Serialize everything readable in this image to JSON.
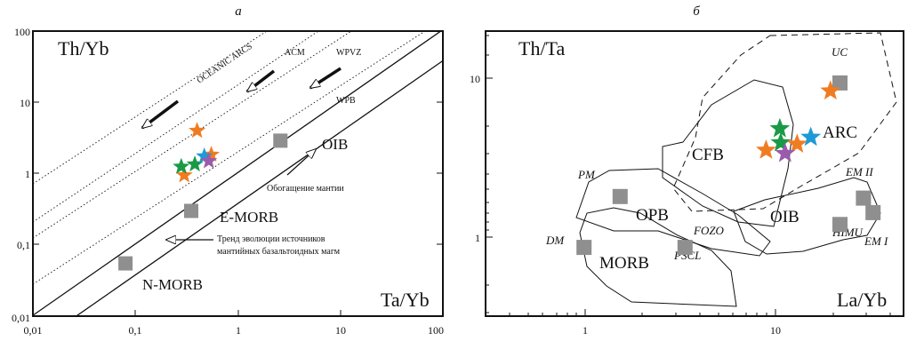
{
  "panels": {
    "a": {
      "letter": "а",
      "y_label": "Th/Yb",
      "x_label": "Ta/Yb",
      "x_ticks": [
        "0,01",
        "0,1",
        "1",
        "10",
        "100"
      ],
      "y_ticks": [
        "100",
        "10",
        "1",
        "0,1",
        "0,01"
      ],
      "zone_labels": [
        "OCEANIC ARCS",
        "ACM",
        "WPVZ",
        "WPB"
      ],
      "oib": "OIB",
      "e_morb": "E-MORB",
      "n_morb": "N-MORB",
      "enrichment": "Обогащение мантии",
      "trend_line1": "Тренд эволюции источников",
      "trend_line2": "мантийных базальтоидных магм"
    },
    "b": {
      "letter": "б",
      "y_label": "Th/Ta",
      "x_label": "La/Yb",
      "x_ticks": [
        "1",
        "10"
      ],
      "y_ticks": [
        "10",
        "1"
      ],
      "fields": [
        "ARC",
        "CFB",
        "OPB",
        "OIB",
        "MORB"
      ],
      "reservoirs": [
        "UC",
        "PM",
        "DM",
        "FOZO",
        "PSCL",
        "EM II",
        "EM I",
        "HIMU"
      ]
    }
  },
  "colors": {
    "orange": "#f07c22",
    "green": "#1a9a47",
    "blue": "#1d9ad6",
    "purple": "#9b5bab",
    "gray": "#8f8f8f"
  },
  "chart_data": [
    {
      "type": "scatter",
      "panel": "a",
      "xlabel": "Ta/Yb",
      "ylabel": "Th/Yb",
      "xscale": "log",
      "yscale": "log",
      "xlim": [
        0.01,
        100
      ],
      "ylim": [
        0.01,
        100
      ],
      "reference_points": [
        {
          "name": "N-MORB",
          "x": 0.08,
          "y": 0.055
        },
        {
          "name": "E-MORB",
          "x": 0.35,
          "y": 0.3
        },
        {
          "name": "OIB",
          "x": 2.6,
          "y": 2.9
        }
      ],
      "samples": [
        {
          "x": 0.4,
          "y": 4.0,
          "color": "orange"
        },
        {
          "x": 0.3,
          "y": 0.95,
          "color": "orange"
        },
        {
          "x": 0.55,
          "y": 1.85,
          "color": "orange"
        },
        {
          "x": 0.28,
          "y": 1.25,
          "color": "green"
        },
        {
          "x": 0.38,
          "y": 1.35,
          "color": "green"
        },
        {
          "x": 0.47,
          "y": 1.75,
          "color": "blue"
        },
        {
          "x": 0.52,
          "y": 1.5,
          "color": "purple"
        }
      ]
    },
    {
      "type": "scatter",
      "panel": "b",
      "xlabel": "La/Yb",
      "ylabel": "Th/Ta",
      "xscale": "log",
      "yscale": "log",
      "xlim": [
        0.3,
        40
      ],
      "ylim": [
        0.35,
        25
      ],
      "reference_points": [
        {
          "name": "UC",
          "x": 19,
          "y": 11.5
        },
        {
          "name": "PM",
          "x": 1.45,
          "y": 2.1
        },
        {
          "name": "DM",
          "x": 0.95,
          "y": 0.98
        },
        {
          "name": "FOZO",
          "x": 3.1,
          "y": 0.98
        },
        {
          "name": "EM II",
          "x": 25,
          "y": 2.05
        },
        {
          "name": "EM I",
          "x": 28,
          "y": 1.65
        },
        {
          "name": "HIMU",
          "x": 19,
          "y": 1.38
        }
      ],
      "samples": [
        {
          "x": 17,
          "y": 10.2,
          "color": "orange"
        },
        {
          "x": 9.4,
          "y": 5.8,
          "color": "green"
        },
        {
          "x": 9.5,
          "y": 4.7,
          "color": "green"
        },
        {
          "x": 13.5,
          "y": 5.1,
          "color": "blue"
        },
        {
          "x": 11.5,
          "y": 4.6,
          "color": "orange"
        },
        {
          "x": 8.0,
          "y": 4.2,
          "color": "orange"
        },
        {
          "x": 10.0,
          "y": 4.0,
          "color": "purple"
        }
      ]
    }
  ]
}
